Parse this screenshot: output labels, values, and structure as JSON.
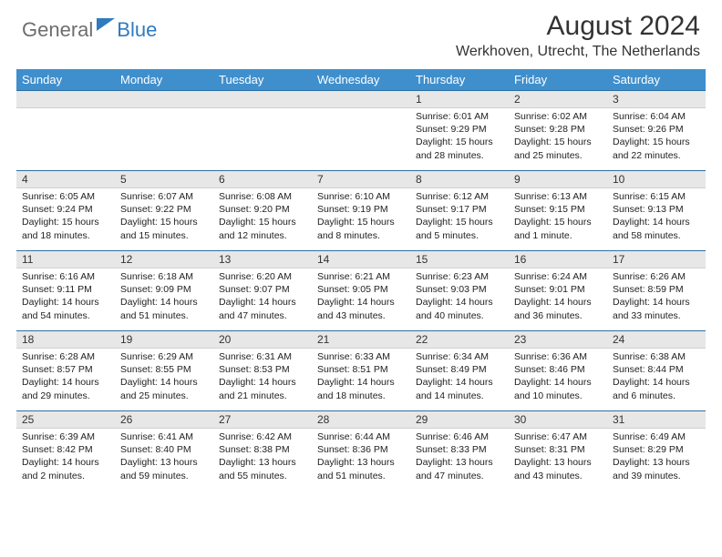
{
  "brand": {
    "part1": "General",
    "part2": "Blue",
    "text_color_gray": "#6e6e6e",
    "text_color_blue": "#2f7bbf"
  },
  "title": "August 2024",
  "location": "Werkhoven, Utrecht, The Netherlands",
  "header_bg": "#3f8fcd",
  "header_fg": "#ffffff",
  "daynum_bg": "#e7e7e7",
  "border_color": "#2f6fa3",
  "weekdays": [
    "Sunday",
    "Monday",
    "Tuesday",
    "Wednesday",
    "Thursday",
    "Friday",
    "Saturday"
  ],
  "weeks": [
    [
      null,
      null,
      null,
      null,
      {
        "n": "1",
        "sr": "6:01 AM",
        "ss": "9:29 PM",
        "dl": "15 hours and 28 minutes."
      },
      {
        "n": "2",
        "sr": "6:02 AM",
        "ss": "9:28 PM",
        "dl": "15 hours and 25 minutes."
      },
      {
        "n": "3",
        "sr": "6:04 AM",
        "ss": "9:26 PM",
        "dl": "15 hours and 22 minutes."
      }
    ],
    [
      {
        "n": "4",
        "sr": "6:05 AM",
        "ss": "9:24 PM",
        "dl": "15 hours and 18 minutes."
      },
      {
        "n": "5",
        "sr": "6:07 AM",
        "ss": "9:22 PM",
        "dl": "15 hours and 15 minutes."
      },
      {
        "n": "6",
        "sr": "6:08 AM",
        "ss": "9:20 PM",
        "dl": "15 hours and 12 minutes."
      },
      {
        "n": "7",
        "sr": "6:10 AM",
        "ss": "9:19 PM",
        "dl": "15 hours and 8 minutes."
      },
      {
        "n": "8",
        "sr": "6:12 AM",
        "ss": "9:17 PM",
        "dl": "15 hours and 5 minutes."
      },
      {
        "n": "9",
        "sr": "6:13 AM",
        "ss": "9:15 PM",
        "dl": "15 hours and 1 minute."
      },
      {
        "n": "10",
        "sr": "6:15 AM",
        "ss": "9:13 PM",
        "dl": "14 hours and 58 minutes."
      }
    ],
    [
      {
        "n": "11",
        "sr": "6:16 AM",
        "ss": "9:11 PM",
        "dl": "14 hours and 54 minutes."
      },
      {
        "n": "12",
        "sr": "6:18 AM",
        "ss": "9:09 PM",
        "dl": "14 hours and 51 minutes."
      },
      {
        "n": "13",
        "sr": "6:20 AM",
        "ss": "9:07 PM",
        "dl": "14 hours and 47 minutes."
      },
      {
        "n": "14",
        "sr": "6:21 AM",
        "ss": "9:05 PM",
        "dl": "14 hours and 43 minutes."
      },
      {
        "n": "15",
        "sr": "6:23 AM",
        "ss": "9:03 PM",
        "dl": "14 hours and 40 minutes."
      },
      {
        "n": "16",
        "sr": "6:24 AM",
        "ss": "9:01 PM",
        "dl": "14 hours and 36 minutes."
      },
      {
        "n": "17",
        "sr": "6:26 AM",
        "ss": "8:59 PM",
        "dl": "14 hours and 33 minutes."
      }
    ],
    [
      {
        "n": "18",
        "sr": "6:28 AM",
        "ss": "8:57 PM",
        "dl": "14 hours and 29 minutes."
      },
      {
        "n": "19",
        "sr": "6:29 AM",
        "ss": "8:55 PM",
        "dl": "14 hours and 25 minutes."
      },
      {
        "n": "20",
        "sr": "6:31 AM",
        "ss": "8:53 PM",
        "dl": "14 hours and 21 minutes."
      },
      {
        "n": "21",
        "sr": "6:33 AM",
        "ss": "8:51 PM",
        "dl": "14 hours and 18 minutes."
      },
      {
        "n": "22",
        "sr": "6:34 AM",
        "ss": "8:49 PM",
        "dl": "14 hours and 14 minutes."
      },
      {
        "n": "23",
        "sr": "6:36 AM",
        "ss": "8:46 PM",
        "dl": "14 hours and 10 minutes."
      },
      {
        "n": "24",
        "sr": "6:38 AM",
        "ss": "8:44 PM",
        "dl": "14 hours and 6 minutes."
      }
    ],
    [
      {
        "n": "25",
        "sr": "6:39 AM",
        "ss": "8:42 PM",
        "dl": "14 hours and 2 minutes."
      },
      {
        "n": "26",
        "sr": "6:41 AM",
        "ss": "8:40 PM",
        "dl": "13 hours and 59 minutes."
      },
      {
        "n": "27",
        "sr": "6:42 AM",
        "ss": "8:38 PM",
        "dl": "13 hours and 55 minutes."
      },
      {
        "n": "28",
        "sr": "6:44 AM",
        "ss": "8:36 PM",
        "dl": "13 hours and 51 minutes."
      },
      {
        "n": "29",
        "sr": "6:46 AM",
        "ss": "8:33 PM",
        "dl": "13 hours and 47 minutes."
      },
      {
        "n": "30",
        "sr": "6:47 AM",
        "ss": "8:31 PM",
        "dl": "13 hours and 43 minutes."
      },
      {
        "n": "31",
        "sr": "6:49 AM",
        "ss": "8:29 PM",
        "dl": "13 hours and 39 minutes."
      }
    ]
  ],
  "labels": {
    "sunrise": "Sunrise:",
    "sunset": "Sunset:",
    "daylight": "Daylight:"
  }
}
